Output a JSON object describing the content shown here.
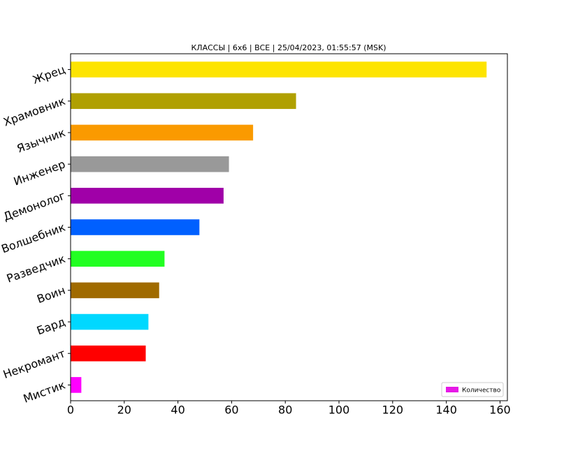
{
  "chart_data": {
    "type": "barh",
    "title": "КЛАССЫ | 6x6 | ВСЕ | 25/04/2023, 01:55:57 (MSK)",
    "categories": [
      "Жрец",
      "Храмовник",
      "Язычник",
      "Инженер",
      "Демонолог",
      "Волшебник",
      "Разведчик",
      "Воин",
      "Бард",
      "Некромант",
      "Мистик"
    ],
    "series": [
      {
        "name": "Количество",
        "color": "#e619e6",
        "values": [
          155,
          84,
          68,
          59,
          57,
          48,
          35,
          33,
          29,
          28,
          4
        ],
        "colors": [
          "#fde400",
          "#b0a000",
          "#fa9a00",
          "#999999",
          "#a000a8",
          "#0060ff",
          "#22ff22",
          "#a06a00",
          "#00d8ff",
          "#ff0000",
          "#ff00ff"
        ]
      }
    ],
    "xlim": [
      0,
      162.75
    ],
    "xticks": [
      0,
      20,
      40,
      60,
      80,
      100,
      120,
      140,
      160
    ],
    "legend": "lower right"
  }
}
